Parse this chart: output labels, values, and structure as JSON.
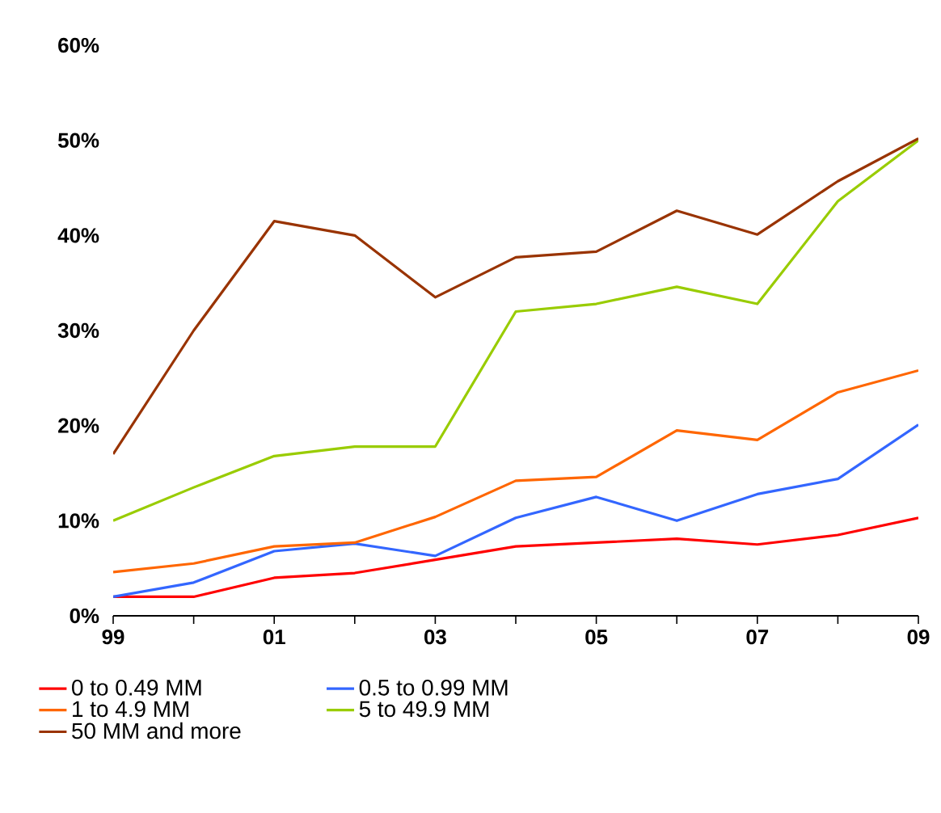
{
  "chart_data": {
    "type": "line",
    "x": [
      1999,
      2000,
      2001,
      2002,
      2003,
      2004,
      2005,
      2006,
      2007,
      2008,
      2009
    ],
    "series": [
      {
        "name": "0 to 0.49 MM",
        "color": "#ff0000",
        "values": [
          2,
          2,
          4,
          4.5,
          5.9,
          7.3,
          7.7,
          8.1,
          7.5,
          8.5,
          10.3
        ]
      },
      {
        "name": "0.5 to 0.99 MM",
        "color": "#3366ff",
        "values": [
          2,
          3.5,
          6.8,
          7.6,
          6.3,
          10.3,
          12.5,
          10,
          12.8,
          14.4,
          20.1
        ]
      },
      {
        "name": "1 to 4.9 MM",
        "color": "#ff6600",
        "values": [
          4.6,
          5.5,
          7.3,
          7.7,
          10.4,
          14.2,
          14.6,
          19.5,
          18.5,
          23.5,
          25.8
        ]
      },
      {
        "name": "5 to 49.9 MM",
        "color": "#99cc00",
        "values": [
          10,
          13.5,
          16.8,
          17.8,
          17.8,
          32,
          32.8,
          34.6,
          32.8,
          43.6,
          50
        ]
      },
      {
        "name": "50 MM and more",
        "color": "#993300",
        "values": [
          17,
          30,
          41.5,
          40,
          33.5,
          37.7,
          38.3,
          42.6,
          40.1,
          45.7,
          50.2
        ]
      }
    ],
    "xlim": [
      1999,
      2009
    ],
    "xticks": [
      {
        "value": 1999,
        "label": "99"
      },
      {
        "value": 2000,
        "label": null
      },
      {
        "value": 2001,
        "label": "01"
      },
      {
        "value": 2002,
        "label": null
      },
      {
        "value": 2003,
        "label": "03"
      },
      {
        "value": 2004,
        "label": null
      },
      {
        "value": 2005,
        "label": "05"
      },
      {
        "value": 2006,
        "label": null
      },
      {
        "value": 2007,
        "label": "07"
      },
      {
        "value": 2008,
        "label": null
      },
      {
        "value": 2009,
        "label": "09"
      }
    ],
    "ylim": [
      0,
      60
    ],
    "yticks": [
      {
        "value": 0,
        "label": "0%"
      },
      {
        "value": 10,
        "label": "10%"
      },
      {
        "value": 20,
        "label": "20%"
      },
      {
        "value": 30,
        "label": "30%"
      },
      {
        "value": 40,
        "label": "40%"
      },
      {
        "value": 50,
        "label": "50%"
      },
      {
        "value": 60,
        "label": "60%"
      }
    ],
    "grid": false,
    "legend": "bottom",
    "marker": "none",
    "line_style": "solid"
  }
}
